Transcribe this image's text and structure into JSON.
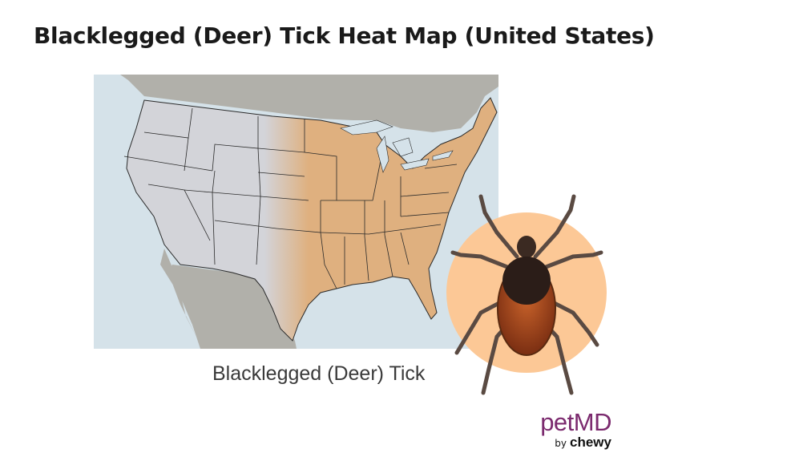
{
  "title": "Blacklegged (Deer) Tick Heat Map (United States)",
  "caption": "Blacklegged (Deer) Tick",
  "logo": {
    "main": "petMD",
    "by": "by",
    "sub": "chewy"
  },
  "map": {
    "region": "United States",
    "highlighted_region": "Eastern and central United States",
    "colors": {
      "ocean": "#d5e2e9",
      "us_land": "#d3d4d9",
      "neighbor_land": "#b1b0aa",
      "tick_range": "#dfb07f",
      "state_border": "#2a2a2a"
    }
  },
  "illustration": {
    "subject": "blacklegged tick",
    "circle_color": "#fcc896"
  },
  "brand_color": "#7b2a6e"
}
